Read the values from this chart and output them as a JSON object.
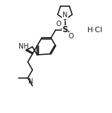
{
  "bg_color": "#ffffff",
  "line_color": "#1a1a1a",
  "line_width": 1.2,
  "font_size": 7.5,
  "hcl_text": "H·Cl",
  "nh_text": "NH",
  "n_pyr_text": "N",
  "s_text": "S",
  "o1_text": "O",
  "o2_text": "O",
  "n_dim_text": "N"
}
